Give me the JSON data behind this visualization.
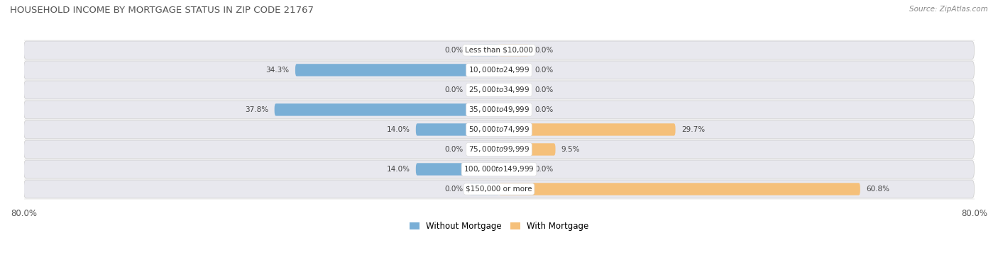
{
  "title": "HOUSEHOLD INCOME BY MORTGAGE STATUS IN ZIP CODE 21767",
  "source": "Source: ZipAtlas.com",
  "categories": [
    "Less than $10,000",
    "$10,000 to $24,999",
    "$25,000 to $34,999",
    "$35,000 to $49,999",
    "$50,000 to $74,999",
    "$75,000 to $99,999",
    "$100,000 to $149,999",
    "$150,000 or more"
  ],
  "without_mortgage": [
    0.0,
    34.3,
    0.0,
    37.8,
    14.0,
    0.0,
    14.0,
    0.0
  ],
  "with_mortgage": [
    0.0,
    0.0,
    0.0,
    0.0,
    29.7,
    9.5,
    0.0,
    60.8
  ],
  "color_without": "#7aafd6",
  "color_with": "#f5c07a",
  "background_color": "#ffffff",
  "band_color": "#e8e8ee",
  "axis_limit": 80.0,
  "legend_labels": [
    "Without Mortgage",
    "With Mortgage"
  ],
  "stub_size": 5.0
}
